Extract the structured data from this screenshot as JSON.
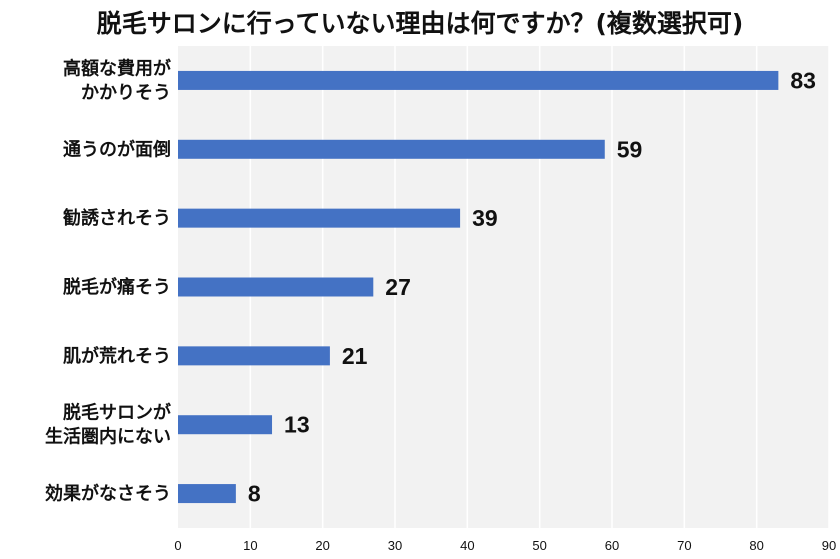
{
  "chart_data": {
    "type": "bar",
    "orientation": "horizontal",
    "title": "脱毛サロンに行っていない理由は何ですか？(複数選択可)",
    "categories": [
      [
        "高額な費用が",
        "かかりそう"
      ],
      [
        "通うのが面倒"
      ],
      [
        "勧誘されそう"
      ],
      [
        "脱毛が痛そう"
      ],
      [
        "肌が荒れそう"
      ],
      [
        "脱毛サロンが",
        "生活圏内にない"
      ],
      [
        "効果がなさそう"
      ]
    ],
    "values": [
      83,
      59,
      39,
      27,
      21,
      13,
      8
    ],
    "data_labels": [
      "83",
      "59",
      "39",
      "27",
      "21",
      "13",
      "8"
    ],
    "x_ticks": [
      "0",
      "10",
      "20",
      "30",
      "40",
      "50",
      "60",
      "70",
      "80",
      "90"
    ],
    "xlim": [
      0,
      90
    ],
    "grid": "vertical",
    "legend": "none",
    "colors": {
      "bar": "#4472C4",
      "plot_background": "#F2F2F2",
      "gridline": "#FFFFFF",
      "text": "#111111"
    }
  }
}
